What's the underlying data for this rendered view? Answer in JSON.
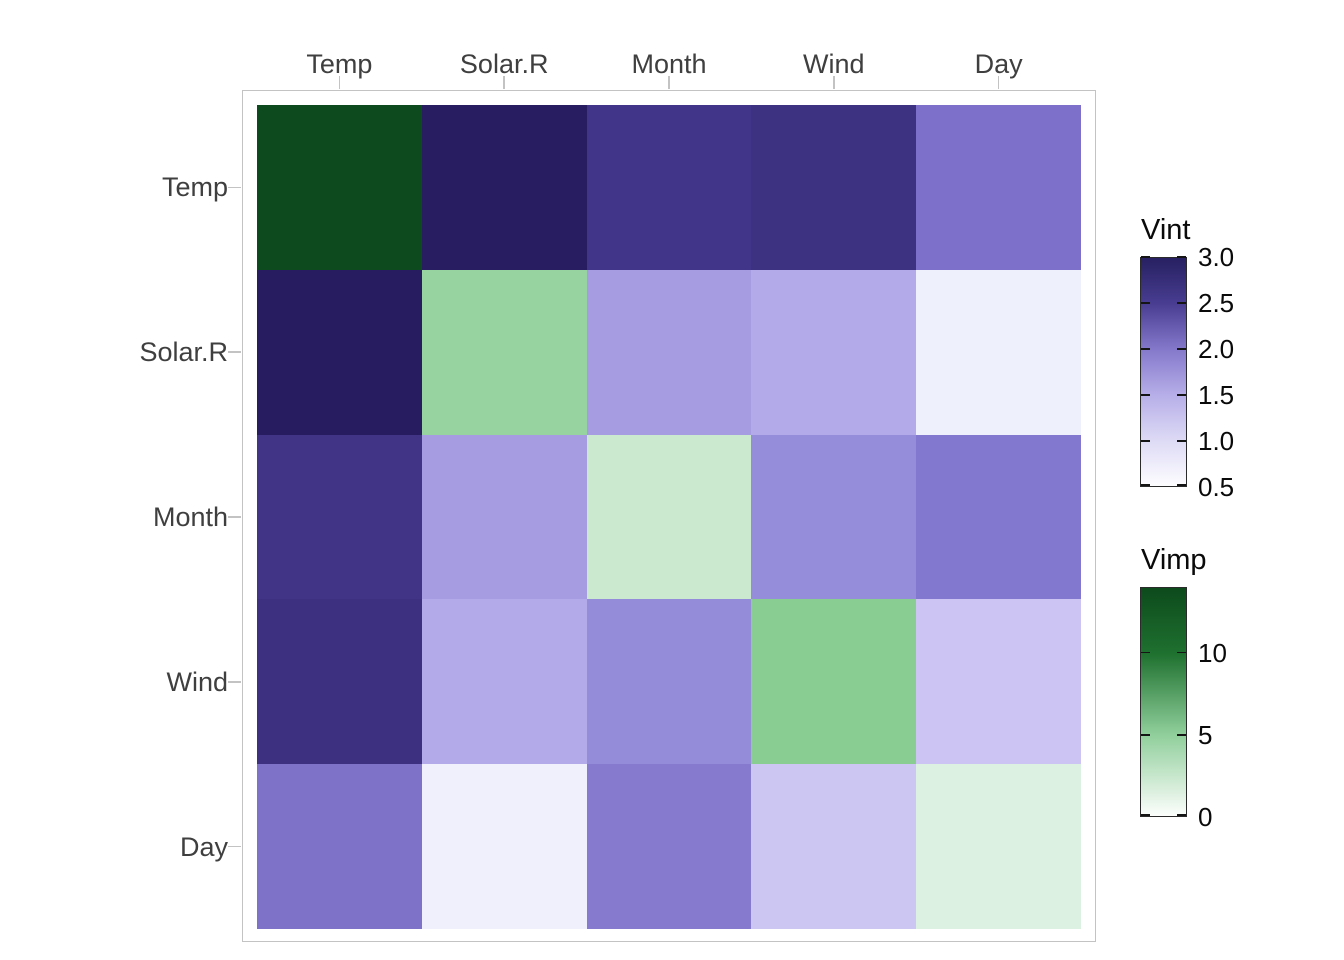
{
  "colors": {
    "background": "#ffffff",
    "panel_border": "#c3c3c3",
    "axis_tick": "#c3c3c3",
    "axis_text": "#3f3f3f",
    "legend_text": "#0a0a0a",
    "legend_bar_frame": "#2b2b2b"
  },
  "chart_data": {
    "type": "heatmap",
    "title": "",
    "x_labels": [
      "Temp",
      "Solar.R",
      "Month",
      "Wind",
      "Day"
    ],
    "y_labels": [
      "Temp",
      "Solar.R",
      "Month",
      "Wind",
      "Day"
    ],
    "diagonal_measure": "Vimp",
    "off_diagonal_measure": "Vint",
    "cells": {
      "values": [
        [
          14.0,
          2.9,
          2.55,
          2.6,
          2.05
        ],
        [
          2.9,
          5.2,
          1.65,
          1.55,
          0.75
        ],
        [
          2.55,
          1.65,
          2.3,
          1.8,
          2.0
        ],
        [
          2.6,
          1.55,
          1.8,
          5.9,
          1.25
        ],
        [
          2.05,
          0.75,
          2.0,
          1.25,
          1.5
        ]
      ],
      "colors": [
        [
          "#0d4a1d",
          "#291d61",
          "#413589",
          "#3d3181",
          "#7c70ca"
        ],
        [
          "#281c60",
          "#96d3a0",
          "#a69ce1",
          "#b3aaea",
          "#eef0fb"
        ],
        [
          "#413487",
          "#a59ce1",
          "#cbe9cf",
          "#958cda",
          "#8378cf"
        ],
        [
          "#3d3081",
          "#b3aaea",
          "#948bd9",
          "#89cd93",
          "#ccc5f4"
        ],
        [
          "#7e72c8",
          "#eff0fb",
          "#857ace",
          "#ccc6f3",
          "#ddf1e2"
        ]
      ]
    },
    "legends": [
      {
        "id": "vint",
        "title": "Vint",
        "range": [
          0.5,
          3.0
        ],
        "ticks": [
          {
            "value": 3.0,
            "label": "3.0"
          },
          {
            "value": 2.5,
            "label": "2.5"
          },
          {
            "value": 2.0,
            "label": "2.0"
          },
          {
            "value": 1.5,
            "label": "1.5"
          },
          {
            "value": 1.0,
            "label": "1.0"
          },
          {
            "value": 0.5,
            "label": "0.5"
          }
        ],
        "gradient": [
          {
            "at": 0.0,
            "color": "#272061"
          },
          {
            "at": 0.2,
            "color": "#483d91"
          },
          {
            "at": 0.4,
            "color": "#8478cb"
          },
          {
            "at": 0.6,
            "color": "#b6aee8"
          },
          {
            "at": 0.8,
            "color": "#dddaf5"
          },
          {
            "at": 1.0,
            "color": "#fdfdff"
          }
        ]
      },
      {
        "id": "vimp",
        "title": "Vimp",
        "range": [
          0,
          14
        ],
        "ticks": [
          {
            "value": 10,
            "label": "10"
          },
          {
            "value": 5,
            "label": "5"
          },
          {
            "value": 0,
            "label": "0"
          }
        ],
        "gradient": [
          {
            "at": 0.0,
            "color": "#0d4a1c"
          },
          {
            "at": 0.29,
            "color": "#1f7130"
          },
          {
            "at": 0.64,
            "color": "#8fce9a"
          },
          {
            "at": 1.0,
            "color": "#fcfefc"
          }
        ]
      }
    ]
  }
}
